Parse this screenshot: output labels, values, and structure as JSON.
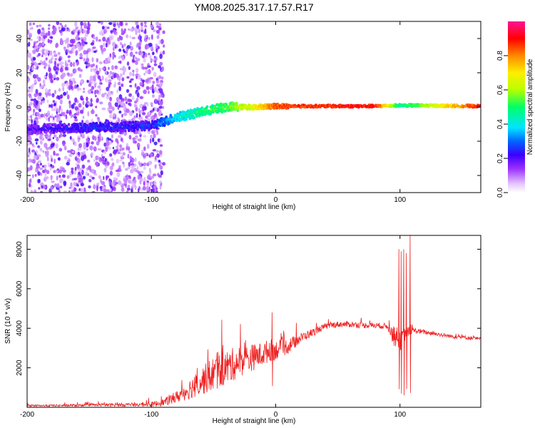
{
  "title": "YM08.2025.317.17.57.R17",
  "chart_data": [
    {
      "type": "heatmap",
      "name": "spectrogram",
      "xlabel": "Height of straight line (km)",
      "ylabel": "Frequency (Hz)",
      "xlim": [
        -200,
        165
      ],
      "ylim": [
        -50,
        50
      ],
      "xticks": [
        -200,
        -100,
        0,
        100
      ],
      "yticks": [
        -40,
        -20,
        0,
        20,
        40
      ],
      "colorbar": {
        "label": "Normalized spectral amplitude",
        "ticks": [
          "0.0",
          "0.2",
          "0.4",
          "0.6",
          "0.8"
        ],
        "range": [
          0,
          1
        ],
        "colors": [
          "#ffffff",
          "#9b30ff",
          "#3b00ff",
          "#0066ff",
          "#00e5ff",
          "#00ff66",
          "#b6ff00",
          "#ffee00",
          "#ff8800",
          "#ff0000",
          "#ff1493"
        ]
      },
      "features": [
        {
          "segment": "noise",
          "x_range": [
            -200,
            -90
          ],
          "freq_range": [
            -50,
            50
          ],
          "amplitude": 0.1
        },
        {
          "segment": "tone_trace",
          "x": [
            -200,
            -150,
            -100,
            -80,
            -60,
            -40,
            -20,
            0,
            80,
            100,
            165
          ],
          "freq": [
            -13,
            -12,
            -11,
            -6,
            -3,
            0,
            0,
            0.5,
            0.5,
            1,
            0.5
          ],
          "amplitude": [
            0.25,
            0.3,
            0.3,
            0.45,
            0.55,
            0.6,
            0.7,
            0.9,
            0.95,
            0.5,
            0.95
          ]
        }
      ]
    },
    {
      "type": "line",
      "name": "snr",
      "xlabel": "Height of straight line (km)",
      "ylabel": "SNR (10 * v/v)",
      "xlim": [
        -200,
        165
      ],
      "ylim": [
        0,
        8700
      ],
      "xticks": [
        -200,
        -100,
        0,
        100
      ],
      "yticks": [
        2000,
        4000,
        6000,
        8000
      ],
      "series": [
        {
          "name": "SNR",
          "color": "#ee2222",
          "x": [
            -200,
            -180,
            -160,
            -140,
            -120,
            -100,
            -90,
            -80,
            -70,
            -60,
            -50,
            -40,
            -30,
            -20,
            -10,
            -5,
            0,
            10,
            20,
            30,
            40,
            50,
            60,
            70,
            80,
            90,
            95,
            100,
            105,
            110,
            120,
            130,
            140,
            150,
            165
          ],
          "y": [
            80,
            90,
            100,
            120,
            130,
            150,
            250,
            500,
            900,
            1300,
            1700,
            2000,
            2300,
            2500,
            2700,
            2900,
            2900,
            3100,
            3500,
            3800,
            4100,
            4200,
            4200,
            4150,
            4150,
            4100,
            3600,
            3300,
            3800,
            3900,
            3800,
            3700,
            3600,
            3550,
            3450
          ],
          "noise": [
            50,
            50,
            60,
            70,
            90,
            120,
            180,
            300,
            500,
            700,
            900,
            900,
            800,
            700,
            600,
            600,
            500,
            400,
            250,
            200,
            150,
            150,
            150,
            150,
            150,
            150,
            500,
            500,
            300,
            150,
            120,
            100,
            100,
            100,
            100
          ],
          "spikes": [
            {
              "x": -3,
              "y": 4800
            },
            {
              "x": 99,
              "y": 8000
            },
            {
              "x": 101,
              "y": 7900
            },
            {
              "x": 103,
              "y": 8000
            },
            {
              "x": 105,
              "y": 7800
            },
            {
              "x": 108,
              "y": 8700
            }
          ]
        }
      ]
    }
  ]
}
